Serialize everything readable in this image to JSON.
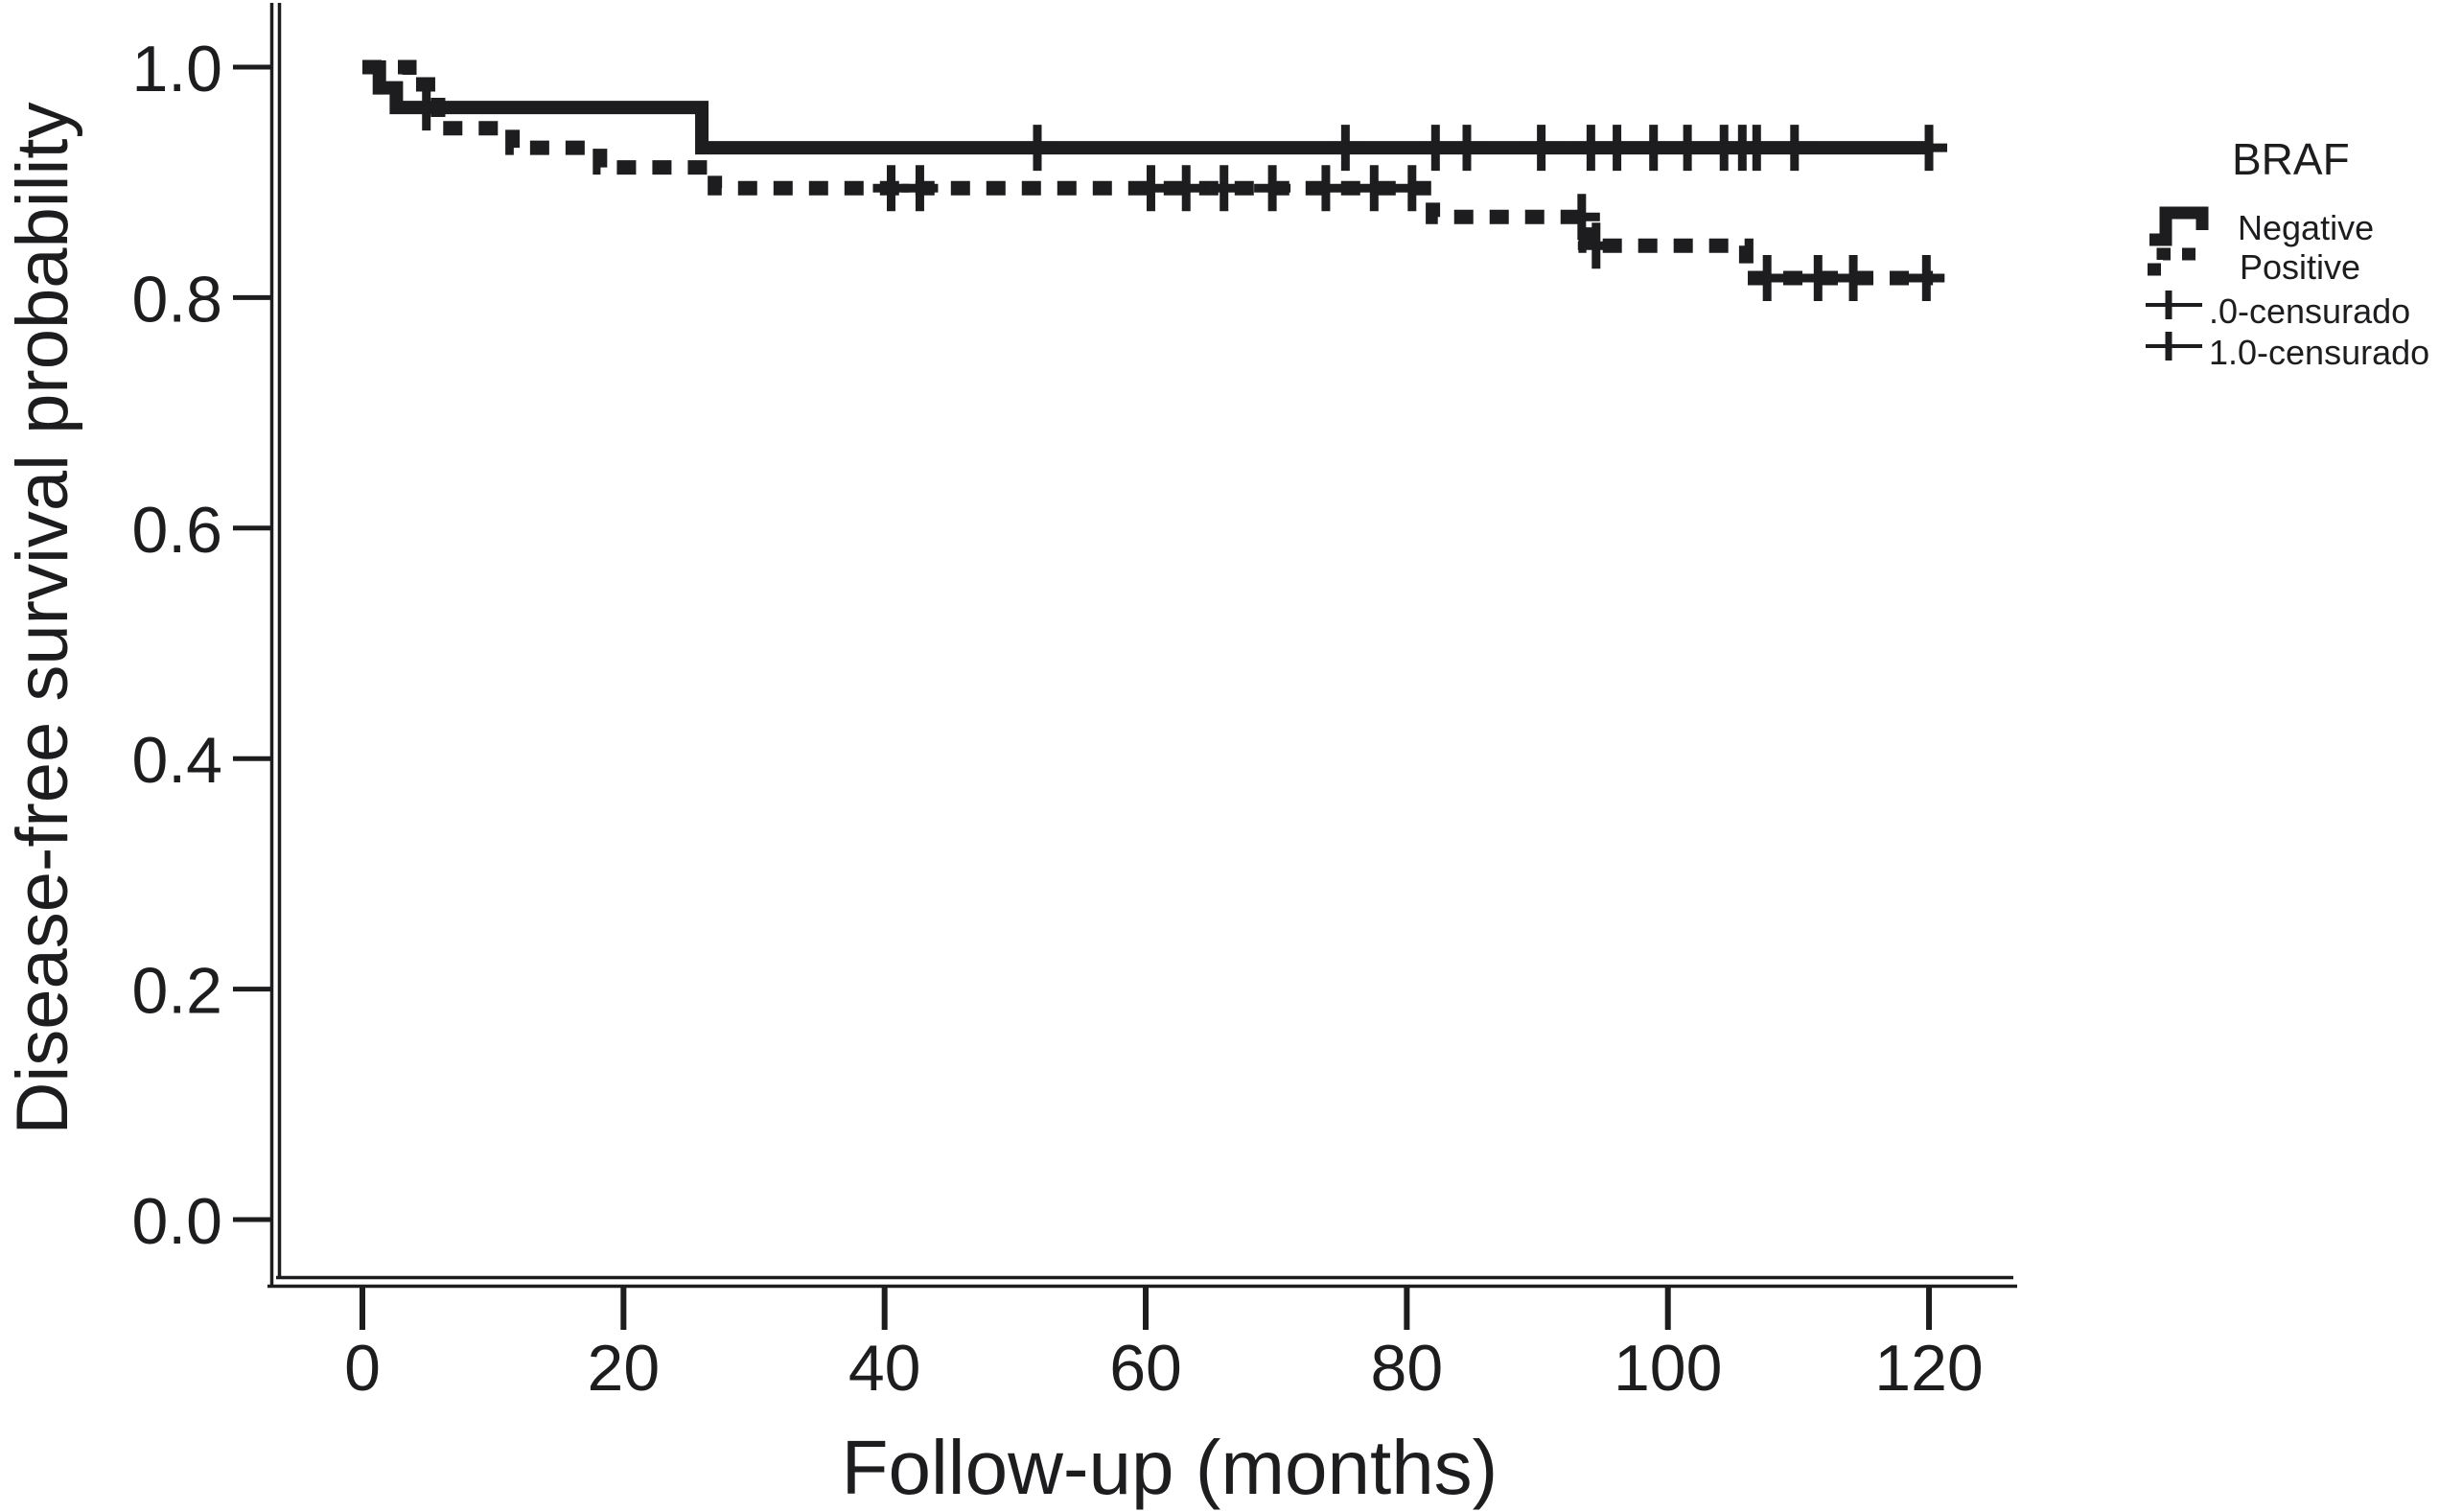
{
  "chart_data": {
    "type": "line",
    "subtype": "kaplan-meier-step",
    "title": "",
    "xlabel": "Follow-up (months)",
    "ylabel": "Disease-free survival probability",
    "xlim": [
      0,
      127
    ],
    "ylim": [
      0.0,
      1.04
    ],
    "grid": false,
    "x_ticks": [
      {
        "value": 0,
        "label": "0"
      },
      {
        "value": 20,
        "label": "20"
      },
      {
        "value": 40,
        "label": "40"
      },
      {
        "value": 60,
        "label": "60"
      },
      {
        "value": 80,
        "label": "80"
      },
      {
        "value": 100,
        "label": "100"
      },
      {
        "value": 120,
        "label": "120"
      }
    ],
    "y_ticks": [
      {
        "value": 0.0,
        "label": "0.0"
      },
      {
        "value": 0.2,
        "label": "0.2"
      },
      {
        "value": 0.4,
        "label": "0.4"
      },
      {
        "value": 0.6,
        "label": "0.6"
      },
      {
        "value": 0.8,
        "label": "0.8"
      },
      {
        "value": 1.0,
        "label": "1.0"
      }
    ],
    "legend": {
      "title": "BRAF",
      "position": "right-top",
      "entries": [
        {
          "label": "Negative",
          "symbol": "solid-step-line"
        },
        {
          "label": "Positive",
          "symbol": "dashed-step-line"
        },
        {
          "label": ".0-censurado",
          "symbol": "plus-on-line"
        },
        {
          "label": "1.0-censurado",
          "symbol": "plus-on-line"
        }
      ]
    },
    "series": [
      {
        "name": "Negative",
        "style": "solid",
        "steps": [
          [
            0,
            1.0
          ],
          [
            1.3,
            0.982
          ],
          [
            2.6,
            0.965
          ],
          [
            26,
            0.93
          ],
          [
            120.2,
            0.93
          ]
        ],
        "censor_marks": [
          [
            4.9,
            0.965
          ],
          [
            51.7,
            0.93
          ],
          [
            75.3,
            0.93
          ],
          [
            82.2,
            0.93
          ],
          [
            84.6,
            0.93
          ],
          [
            90.3,
            0.93
          ],
          [
            94.1,
            0.93
          ],
          [
            96.1,
            0.93
          ],
          [
            98.9,
            0.93
          ],
          [
            101.5,
            0.93
          ],
          [
            104.3,
            0.93
          ],
          [
            105.7,
            0.93
          ],
          [
            106.8,
            0.93
          ],
          [
            109.7,
            0.93
          ],
          [
            120,
            0.93
          ]
        ]
      },
      {
        "name": "Positive",
        "style": "dashed",
        "steps": [
          [
            0,
            1.0
          ],
          [
            3.6,
            0.985
          ],
          [
            5.8,
            0.947
          ],
          [
            11.5,
            0.93
          ],
          [
            18.2,
            0.913
          ],
          [
            27,
            0.895
          ],
          [
            82,
            0.87
          ],
          [
            93.7,
            0.845
          ],
          [
            106,
            0.817
          ],
          [
            120.3,
            0.817
          ]
        ],
        "censor_marks": [
          [
            40.5,
            0.895
          ],
          [
            42.7,
            0.895
          ],
          [
            60.4,
            0.895
          ],
          [
            63.1,
            0.895
          ],
          [
            66,
            0.895
          ],
          [
            69.7,
            0.895
          ],
          [
            73.8,
            0.895
          ],
          [
            77.5,
            0.895
          ],
          [
            80.4,
            0.895
          ],
          [
            93.4,
            0.87
          ],
          [
            94.5,
            0.845
          ],
          [
            107.6,
            0.817
          ],
          [
            111.5,
            0.817
          ],
          [
            114.2,
            0.817
          ],
          [
            119.8,
            0.817
          ]
        ]
      }
    ],
    "colors": {
      "ink": "#1d1d1f",
      "background": "#ffffff"
    }
  }
}
